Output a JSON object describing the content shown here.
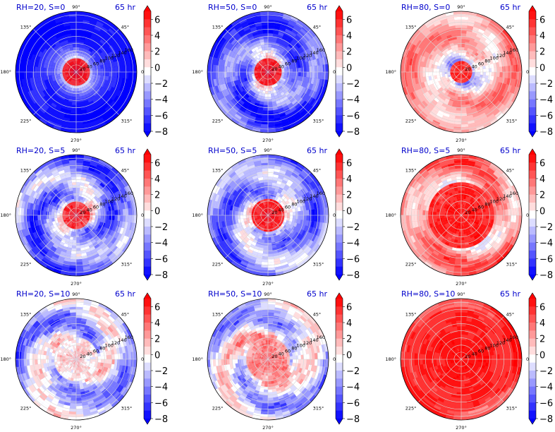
{
  "figure": {
    "rows": [
      "S=0",
      "S=5",
      "S=10"
    ],
    "cols": [
      "RH=20",
      "RH=50",
      "RH=80"
    ]
  },
  "colors": {
    "title": "#0000cc",
    "neg_extreme": "#0000ff",
    "pos_extreme": "#ff0000",
    "grid": "#d8d8d8",
    "axis": "#000000"
  },
  "chart_data": [
    {
      "type": "heatmap",
      "projection": "polar",
      "title": "RH=20, S=0",
      "time_label": "65 hr",
      "theta_ticks": [
        "0°",
        "45°",
        "90°",
        "135°",
        "180°",
        "225°",
        "270°",
        "315°"
      ],
      "r_ticks": [
        "20",
        "40",
        "60",
        "80",
        "100",
        "120",
        "140",
        "160"
      ],
      "r_range": [
        0,
        170
      ],
      "colorbar": {
        "ticks": [
          "6",
          "4",
          "2",
          "0",
          "−2",
          "−4",
          "−6",
          "−8"
        ],
        "range": [
          -8,
          7
        ],
        "cmap": "bwr"
      },
      "pattern": {
        "core_radius": 42,
        "core_value": 7,
        "background": -8,
        "ring_value": -2,
        "noise": 0.15
      }
    },
    {
      "type": "heatmap",
      "projection": "polar",
      "title": "RH=50, S=0",
      "time_label": "65 hr",
      "theta_ticks": [
        "0°",
        "45°",
        "90°",
        "135°",
        "180°",
        "225°",
        "270°",
        "315°"
      ],
      "r_ticks": [
        "20",
        "40",
        "60",
        "80",
        "100",
        "120",
        "140",
        "160"
      ],
      "r_range": [
        0,
        170
      ],
      "colorbar": {
        "ticks": [
          "6",
          "4",
          "2",
          "0",
          "−2",
          "−4",
          "−6",
          "−8"
        ],
        "range": [
          -8,
          7
        ],
        "cmap": "bwr"
      },
      "pattern": {
        "core_radius": 40,
        "core_value": 7,
        "background": -6,
        "ring_value": 0,
        "noise": 0.45
      }
    },
    {
      "type": "heatmap",
      "projection": "polar",
      "title": "RH=80, S=0",
      "time_label": "65 hr",
      "theta_ticks": [
        "0°",
        "45°",
        "90°",
        "135°",
        "180°",
        "225°",
        "270°",
        "315°"
      ],
      "r_ticks": [
        "20",
        "40",
        "60",
        "80",
        "100",
        "120",
        "140",
        "160"
      ],
      "r_range": [
        0,
        170
      ],
      "colorbar": {
        "ticks": [
          "6",
          "4",
          "2",
          "0",
          "−2",
          "−4",
          "−6",
          "−8"
        ],
        "range": [
          -8,
          7
        ],
        "cmap": "bwr"
      },
      "pattern": {
        "core_radius": 30,
        "core_value": 7,
        "background": 2.5,
        "ring_value": -4,
        "noise": 0.35
      }
    },
    {
      "type": "heatmap",
      "projection": "polar",
      "title": "RH=20, S=5",
      "time_label": "65 hr",
      "theta_ticks": [
        "0°",
        "45°",
        "90°",
        "135°",
        "180°",
        "225°",
        "270°",
        "315°"
      ],
      "r_ticks": [
        "20",
        "40",
        "60",
        "80",
        "100",
        "120",
        "140",
        "160"
      ],
      "r_range": [
        0,
        170
      ],
      "colorbar": {
        "ticks": [
          "6",
          "4",
          "2",
          "0",
          "−2",
          "−4",
          "−6",
          "−8"
        ],
        "range": [
          -8,
          7
        ],
        "cmap": "bwr"
      },
      "pattern": {
        "core_radius": 38,
        "core_value": 6.5,
        "background": -4.5,
        "ring_value": 0,
        "noise": 0.55
      }
    },
    {
      "type": "heatmap",
      "projection": "polar",
      "title": "RH=50, S=5",
      "time_label": "65 hr",
      "theta_ticks": [
        "0°",
        "45°",
        "90°",
        "135°",
        "180°",
        "225°",
        "270°",
        "315°"
      ],
      "r_ticks": [
        "20",
        "40",
        "60",
        "80",
        "100",
        "120",
        "140",
        "160"
      ],
      "r_range": [
        0,
        170
      ],
      "colorbar": {
        "ticks": [
          "6",
          "4",
          "2",
          "0",
          "−2",
          "−4",
          "−6",
          "−8"
        ],
        "range": [
          -8,
          7
        ],
        "cmap": "bwr"
      },
      "pattern": {
        "core_radius": 48,
        "core_value": 7,
        "background": -4,
        "ring_value": -1,
        "noise": 0.5
      }
    },
    {
      "type": "heatmap",
      "projection": "polar",
      "title": "RH=80, S=5",
      "time_label": "65 hr",
      "theta_ticks": [
        "0°",
        "45°",
        "90°",
        "135°",
        "180°",
        "225°",
        "270°",
        "315°"
      ],
      "r_ticks": [
        "20",
        "40",
        "60",
        "80",
        "100",
        "120",
        "140",
        "160"
      ],
      "r_range": [
        0,
        170
      ],
      "colorbar": {
        "ticks": [
          "6",
          "4",
          "2",
          "0",
          "−2",
          "−4",
          "−6",
          "−8"
        ],
        "range": [
          -8,
          7
        ],
        "cmap": "bwr"
      },
      "pattern": {
        "core_radius": 95,
        "core_value": 7,
        "background": 3.5,
        "ring_value": 1,
        "noise": 0.45
      }
    },
    {
      "type": "heatmap",
      "projection": "polar",
      "title": "RH=20, S=10",
      "time_label": "65 hr",
      "theta_ticks": [
        "0°",
        "45°",
        "90°",
        "135°",
        "180°",
        "225°",
        "270°",
        "315°"
      ],
      "r_ticks": [
        "20",
        "40",
        "60",
        "80",
        "100",
        "120",
        "140",
        "160"
      ],
      "r_range": [
        0,
        170
      ],
      "colorbar": {
        "ticks": [
          "6",
          "4",
          "2",
          "0",
          "−2",
          "−4",
          "−6",
          "−8"
        ],
        "range": [
          -8,
          7
        ],
        "cmap": "bwr"
      },
      "pattern": {
        "core_radius": 60,
        "core_value": 1.5,
        "background": -2.5,
        "ring_value": -1,
        "noise": 0.6
      }
    },
    {
      "type": "heatmap",
      "projection": "polar",
      "title": "RH=50, S=10",
      "time_label": "65 hr",
      "theta_ticks": [
        "0°",
        "45°",
        "90°",
        "135°",
        "180°",
        "225°",
        "270°",
        "315°"
      ],
      "r_ticks": [
        "20",
        "40",
        "60",
        "80",
        "100",
        "120",
        "140",
        "160"
      ],
      "r_range": [
        0,
        170
      ],
      "colorbar": {
        "ticks": [
          "6",
          "4",
          "2",
          "0",
          "−2",
          "−4",
          "−6",
          "−8"
        ],
        "range": [
          -8,
          7
        ],
        "cmap": "bwr"
      },
      "pattern": {
        "core_radius": 60,
        "core_value": 4,
        "background": -2,
        "ring_value": 1,
        "noise": 0.6
      }
    },
    {
      "type": "heatmap",
      "projection": "polar",
      "title": "RH=80, S=10",
      "time_label": "65 hr",
      "theta_ticks": [
        "0°",
        "45°",
        "90°",
        "135°",
        "180°",
        "225°",
        "270°",
        "315°"
      ],
      "r_ticks": [
        "20",
        "40",
        "60",
        "80",
        "100",
        "120",
        "140",
        "160"
      ],
      "r_range": [
        0,
        170
      ],
      "colorbar": {
        "ticks": [
          "6",
          "4",
          "2",
          "0",
          "−2",
          "−4",
          "−6",
          "−8"
        ],
        "range": [
          -8,
          7
        ],
        "cmap": "bwr"
      },
      "pattern": {
        "core_radius": 150,
        "core_value": 7,
        "background": 6,
        "ring_value": 5,
        "noise": 0.3
      }
    }
  ]
}
